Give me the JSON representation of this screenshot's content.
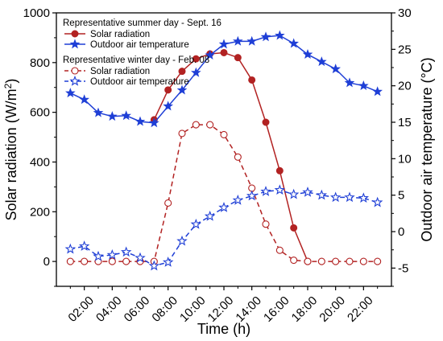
{
  "chart_data": {
    "type": "line",
    "xlabel": "Time (h)",
    "ylabel_left": "Solar radiation (W/m²)",
    "ylabel_left_main": "Solar radiation (W/m",
    "ylabel_left_sup": "2",
    "ylabel_left_end": ")",
    "ylabel_right": "Outdoor air temperature (°C)",
    "xlim": [
      0,
      24
    ],
    "ylim_left": [
      -100,
      1000
    ],
    "ylim_right": [
      -7.5,
      30
    ],
    "x_ticks": [
      "02:00",
      "04:00",
      "06:00",
      "08:00",
      "10:00",
      "12:00",
      "14:00",
      "16:00",
      "18:00",
      "20:00",
      "22:00"
    ],
    "x_tick_values": [
      2,
      4,
      6,
      8,
      10,
      12,
      14,
      16,
      18,
      20,
      22
    ],
    "y_left_ticks": [
      0,
      200,
      400,
      600,
      800,
      1000
    ],
    "y_right_ticks": [
      -5,
      0,
      5,
      10,
      15,
      20,
      25,
      30
    ],
    "legend_groups": [
      {
        "title": "Representative summer day - Sept. 16",
        "entries": [
          "Solar radiation",
          "Outdoor air temperature"
        ]
      },
      {
        "title": "Representative winter day - Feb. 08",
        "entries": [
          "Solar radiation",
          "Outdoor air temperature"
        ]
      }
    ],
    "series": [
      {
        "name": "Solar radiation",
        "group": "Representative summer day - Sept. 16",
        "axis": "left",
        "color": "#b22222",
        "line": "solid",
        "marker": "circle-filled",
        "x": [
          7,
          8,
          9,
          10,
          11,
          12,
          13,
          14,
          15,
          16,
          17,
          18
        ],
        "y": [
          570,
          690,
          765,
          815,
          835,
          840,
          820,
          730,
          560,
          365,
          135,
          0
        ]
      },
      {
        "name": "Outdoor air temperature",
        "group": "Representative summer day - Sept. 16",
        "axis": "right",
        "color": "#1f3fd6",
        "line": "solid",
        "marker": "star-filled",
        "x": [
          1,
          2,
          3,
          4,
          5,
          6,
          7,
          8,
          9,
          10,
          11,
          12,
          13,
          14,
          15,
          16,
          17,
          18,
          19,
          20,
          21,
          22,
          23
        ],
        "y": [
          19,
          18.1,
          16.3,
          15.8,
          15.9,
          15.1,
          14.9,
          17.2,
          19.4,
          21.8,
          24.2,
          25.7,
          26.1,
          26.1,
          26.7,
          26.9,
          25.8,
          24.3,
          23.3,
          22.3,
          20.4,
          20.0,
          19.2
        ]
      },
      {
        "name": "Solar radiation",
        "group": "Representative winter day - Feb. 08",
        "axis": "left",
        "color": "#b22222",
        "line": "dashed",
        "marker": "circle-open",
        "x": [
          1,
          2,
          3,
          4,
          5,
          6,
          7,
          8,
          9,
          10,
          11,
          12,
          13,
          14,
          15,
          16,
          17,
          18,
          19,
          20,
          21,
          22,
          23
        ],
        "y": [
          0,
          0,
          0,
          0,
          0,
          0,
          0,
          235,
          515,
          550,
          550,
          510,
          420,
          295,
          150,
          45,
          5,
          0,
          0,
          0,
          0,
          0,
          0
        ]
      },
      {
        "name": "Outdoor air temperature",
        "group": "Representative winter day - Feb. 08",
        "axis": "right",
        "color": "#1f3fd6",
        "line": "dashed",
        "marker": "star-open",
        "x": [
          1,
          2,
          3,
          4,
          5,
          6,
          7,
          8,
          9,
          10,
          11,
          12,
          13,
          14,
          15,
          16,
          17,
          18,
          19,
          20,
          21,
          22,
          23
        ],
        "y": [
          -2.4,
          -2.0,
          -3.4,
          -3.2,
          -2.8,
          -3.6,
          -4.7,
          -4.2,
          -1.3,
          1.0,
          2.1,
          3.3,
          4.3,
          4.9,
          5.5,
          5.7,
          5.1,
          5.4,
          5.0,
          4.7,
          4.7,
          4.6,
          4.0
        ]
      }
    ]
  }
}
